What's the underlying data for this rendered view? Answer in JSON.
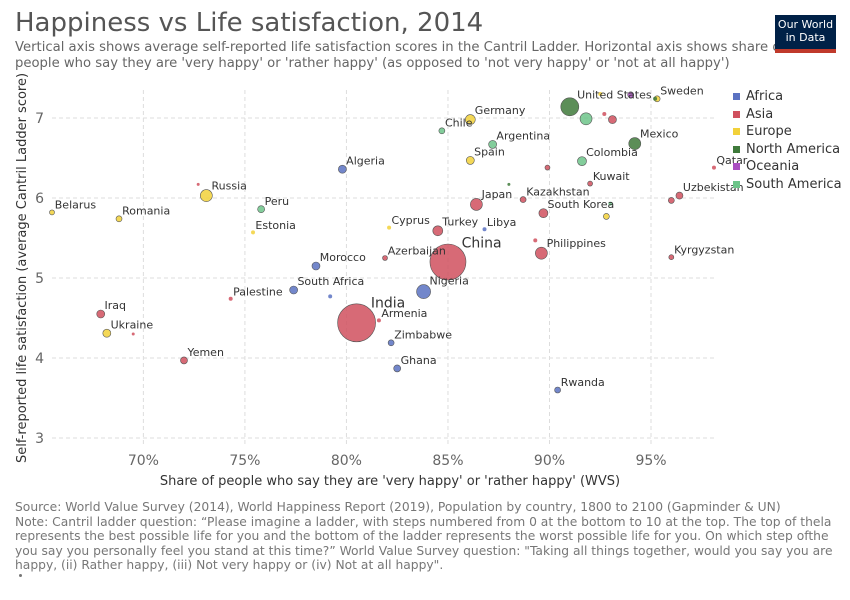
{
  "title": "Happiness vs Life satisfaction, 2014",
  "subtitle": "Vertical axis shows average self-reported life satisfaction scores in the Cantril Ladder. Horizontal axis shows share of people who say they are 'very happy' or 'rather happy' (as opposed to 'not very happy' or 'not at all happy')",
  "logo": {
    "line1": "Our World",
    "line2": "in Data"
  },
  "footer": {
    "source": "Source: World Value Survey (2014), World Happiness Report (2019), Population by country, 1800 to 2100 (Gapminder & UN)",
    "note": "Note: Cantril ladder question: “Please imagine a ladder, with steps numbered from 0 at the bottom to 10 at the top. The top of thela represents the best possible life for you and the bottom of the ladder represents the worst possible life for you. On which step ofthe you say you personally feel you stand at this time?” World Value Survey question: \"Taking all things together, would you say you are happy, (ii) Rather happy, (iii) Not very happy or (iv) Not at all happy\"."
  },
  "chart_data": {
    "type": "scatter",
    "title": "Happiness vs Life satisfaction, 2014",
    "xlabel": "Share of people who say they are 'very happy' or 'rather happy' (WVS)",
    "ylabel": "Self-reported life satisfaction (average Cantril Ladder score)",
    "xlim": [
      65.5,
      98.2
    ],
    "ylim": [
      2.9,
      7.35
    ],
    "x_ticks": [
      70,
      75,
      80,
      85,
      90,
      95
    ],
    "x_tick_labels": [
      "70%",
      "75%",
      "80%",
      "85%",
      "90%",
      "95%"
    ],
    "y_ticks": [
      3,
      4,
      5,
      6,
      7
    ],
    "y_tick_labels": [
      "3",
      "4",
      "5",
      "6",
      "7"
    ],
    "grid": true,
    "legend_position": "right",
    "colors": {
      "Africa": "#5b72c2",
      "Asia": "#d0505e",
      "Europe": "#f2d13a",
      "North America": "#3f7a3b",
      "Oceania": "#a94fc1",
      "South America": "#6dc489"
    },
    "legend": [
      "Africa",
      "Asia",
      "Europe",
      "North America",
      "Oceania",
      "South America"
    ],
    "points": [
      {
        "name": "Belarus",
        "region": "Europe",
        "x": 65.5,
        "y": 5.82,
        "r": 2.5,
        "label": true
      },
      {
        "name": "Romania",
        "region": "Europe",
        "x": 68.8,
        "y": 5.74,
        "r": 3,
        "label": true
      },
      {
        "name": "Russia",
        "region": "Europe",
        "x": 73.1,
        "y": 6.03,
        "r": 6,
        "label": true
      },
      {
        "name": "Peru",
        "region": "South America",
        "x": 75.8,
        "y": 5.86,
        "r": 3.5,
        "label": true
      },
      {
        "name": "Estonia",
        "region": "Europe",
        "x": 75.4,
        "y": 5.57,
        "r": 2,
        "label": true
      },
      {
        "name": "Algeria",
        "region": "Africa",
        "x": 79.8,
        "y": 6.36,
        "r": 4,
        "label": true
      },
      {
        "name": "Morocco",
        "region": "Africa",
        "x": 78.5,
        "y": 5.15,
        "r": 4,
        "label": true
      },
      {
        "name": "Palestine",
        "region": "Asia",
        "x": 74.3,
        "y": 4.74,
        "r": 2,
        "label": true
      },
      {
        "name": "South Africa",
        "region": "Africa",
        "x": 77.4,
        "y": 4.85,
        "r": 4,
        "label": true
      },
      {
        "name": "Iraq",
        "region": "Asia",
        "x": 67.9,
        "y": 4.55,
        "r": 4,
        "label": true
      },
      {
        "name": "Ukraine",
        "region": "Europe",
        "x": 68.2,
        "y": 4.31,
        "r": 4,
        "label": true
      },
      {
        "name": "Yemen",
        "region": "Asia",
        "x": 72.0,
        "y": 3.97,
        "r": 3.5,
        "label": true
      },
      {
        "name": "India",
        "region": "Asia",
        "x": 80.5,
        "y": 4.44,
        "r": 19,
        "label": true
      },
      {
        "name": "Armenia",
        "region": "Asia",
        "x": 81.6,
        "y": 4.47,
        "r": 2,
        "label": true
      },
      {
        "name": "Zimbabwe",
        "region": "Africa",
        "x": 82.2,
        "y": 4.19,
        "r": 3,
        "label": true
      },
      {
        "name": "Ghana",
        "region": "Africa",
        "x": 82.5,
        "y": 3.87,
        "r": 3.5,
        "label": true
      },
      {
        "name": "Nigeria",
        "region": "Africa",
        "x": 83.8,
        "y": 4.83,
        "r": 7,
        "label": true
      },
      {
        "name": "Azerbaijan",
        "region": "Asia",
        "x": 81.9,
        "y": 5.25,
        "r": 2.5,
        "label": true
      },
      {
        "name": "Cyprus",
        "region": "Europe",
        "x": 82.1,
        "y": 5.63,
        "r": 2,
        "label": true
      },
      {
        "name": "Turkey",
        "region": "Asia",
        "x": 84.5,
        "y": 5.59,
        "r": 5,
        "label": true
      },
      {
        "name": "China",
        "region": "Asia",
        "x": 85.0,
        "y": 5.2,
        "r": 18,
        "label": true
      },
      {
        "name": "Libya",
        "region": "Africa",
        "x": 86.8,
        "y": 5.61,
        "r": 2,
        "label": true
      },
      {
        "name": "Japan",
        "region": "Asia",
        "x": 86.4,
        "y": 5.92,
        "r": 6,
        "label": true
      },
      {
        "name": "Chile",
        "region": "South America",
        "x": 84.7,
        "y": 6.84,
        "r": 3,
        "label": true
      },
      {
        "name": "Germany",
        "region": "Europe",
        "x": 86.1,
        "y": 6.98,
        "r": 5,
        "label": true
      },
      {
        "name": "Spain",
        "region": "Europe",
        "x": 86.1,
        "y": 6.47,
        "r": 4,
        "label": true
      },
      {
        "name": "Argentina",
        "region": "South America",
        "x": 87.2,
        "y": 6.67,
        "r": 4,
        "label": true
      },
      {
        "name": "Kazakhstan",
        "region": "Asia",
        "x": 88.7,
        "y": 5.98,
        "r": 3,
        "label": true
      },
      {
        "name": "South Korea",
        "region": "Asia",
        "x": 89.7,
        "y": 5.81,
        "r": 4.5,
        "label": true
      },
      {
        "name": "Philippines",
        "region": "Asia",
        "x": 89.6,
        "y": 5.31,
        "r": 6,
        "label": true
      },
      {
        "name": "Rwanda",
        "region": "Africa",
        "x": 90.4,
        "y": 3.6,
        "r": 3,
        "label": true
      },
      {
        "name": "Colombia",
        "region": "South America",
        "x": 91.6,
        "y": 6.46,
        "r": 4.5,
        "label": true
      },
      {
        "name": "United States",
        "region": "North America",
        "x": 91.0,
        "y": 7.14,
        "r": 9,
        "label": true
      },
      {
        "name": "Kuwait",
        "region": "Asia",
        "x": 92.0,
        "y": 6.18,
        "r": 2.5,
        "label": true
      },
      {
        "name": "Mexico",
        "region": "North America",
        "x": 94.2,
        "y": 6.68,
        "r": 6,
        "label": true
      },
      {
        "name": "Sweden",
        "region": "Europe",
        "x": 95.3,
        "y": 7.24,
        "r": 3,
        "label": true
      },
      {
        "name": "Qatar",
        "region": "Asia",
        "x": 98.1,
        "y": 6.38,
        "r": 2,
        "label": true
      },
      {
        "name": "Uzbekistan",
        "region": "Asia",
        "x": 96.4,
        "y": 6.03,
        "r": 3.5,
        "label": true
      },
      {
        "name": "Kyrgyzstan",
        "region": "Asia",
        "x": 96.0,
        "y": 5.26,
        "r": 2.5,
        "label": true
      },
      {
        "name": "",
        "region": "South America",
        "x": 91.8,
        "y": 6.99,
        "r": 6,
        "label": false
      },
      {
        "name": "",
        "region": "Asia",
        "x": 93.1,
        "y": 6.98,
        "r": 4,
        "label": false
      },
      {
        "name": "",
        "region": "Asia",
        "x": 92.7,
        "y": 7.05,
        "r": 2,
        "label": false
      },
      {
        "name": "",
        "region": "Europe",
        "x": 92.5,
        "y": 7.3,
        "r": 2,
        "label": false
      },
      {
        "name": "",
        "region": "Oceania",
        "x": 94.0,
        "y": 7.29,
        "r": 3,
        "label": false
      },
      {
        "name": "",
        "region": "North America",
        "x": 95.2,
        "y": 7.24,
        "r": 2,
        "label": false
      },
      {
        "name": "",
        "region": "Asia",
        "x": 89.9,
        "y": 6.38,
        "r": 2.5,
        "label": false
      },
      {
        "name": "",
        "region": "North America",
        "x": 88.0,
        "y": 6.17,
        "r": 1.5,
        "label": false
      },
      {
        "name": "",
        "region": "Europe",
        "x": 92.8,
        "y": 5.77,
        "r": 3,
        "label": false
      },
      {
        "name": "",
        "region": "South America",
        "x": 93.0,
        "y": 5.93,
        "r": 2,
        "label": false
      },
      {
        "name": "",
        "region": "Asia",
        "x": 96.0,
        "y": 5.97,
        "r": 3,
        "label": false
      },
      {
        "name": "",
        "region": "Asia",
        "x": 89.3,
        "y": 5.47,
        "r": 2,
        "label": false
      },
      {
        "name": "",
        "region": "Asia",
        "x": 72.7,
        "y": 6.17,
        "r": 1.5,
        "label": false
      },
      {
        "name": "",
        "region": "Africa",
        "x": 79.2,
        "y": 4.77,
        "r": 2,
        "label": false
      },
      {
        "name": "",
        "region": "Asia",
        "x": 69.5,
        "y": 4.3,
        "r": 1.5,
        "label": false
      }
    ]
  }
}
